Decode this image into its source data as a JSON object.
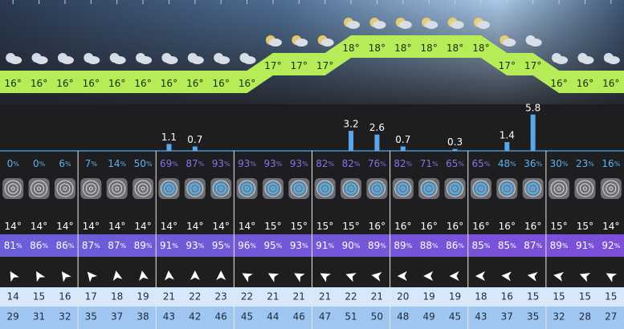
{
  "top": {
    "temps": [
      16,
      16,
      16,
      16,
      16,
      16,
      16,
      16,
      16,
      16,
      17,
      17,
      17,
      18,
      18,
      18,
      18,
      18,
      18,
      17,
      17,
      16,
      16,
      16
    ],
    "deg": "°"
  },
  "precip": {
    "values": [
      null,
      null,
      null,
      null,
      null,
      null,
      1.1,
      0.7,
      null,
      null,
      null,
      null,
      null,
      3.2,
      2.6,
      0.7,
      null,
      0.3,
      null,
      1.4,
      5.8,
      null,
      null,
      null
    ]
  },
  "cloud": {
    "values": [
      0,
      0,
      6,
      7,
      14,
      50,
      69,
      87,
      93,
      93,
      93,
      93,
      82,
      82,
      76,
      82,
      71,
      65,
      65,
      48,
      36,
      30,
      23,
      16
    ],
    "unit": "%"
  },
  "temp": {
    "values": [
      14,
      14,
      14,
      14,
      14,
      14,
      14,
      14,
      14,
      14,
      15,
      15,
      15,
      15,
      16,
      16,
      16,
      16,
      16,
      16,
      16,
      15,
      15,
      14
    ],
    "deg": "°"
  },
  "humidity": {
    "values": [
      81,
      86,
      86,
      87,
      87,
      89,
      91,
      93,
      95,
      96,
      95,
      93,
      91,
      90,
      89,
      89,
      88,
      86,
      85,
      85,
      87,
      89,
      91,
      92
    ],
    "unit": "%"
  },
  "wind": {
    "values": [
      14,
      15,
      16,
      17,
      18,
      19,
      21,
      22,
      23,
      22,
      21,
      21,
      21,
      22,
      21,
      20,
      19,
      19,
      18,
      16,
      15,
      15,
      15,
      15
    ]
  },
  "gust": {
    "values": [
      29,
      31,
      32,
      35,
      37,
      38,
      43,
      42,
      46,
      45,
      44,
      46,
      47,
      51,
      50,
      48,
      49,
      45,
      43,
      37,
      35,
      32,
      28,
      27
    ]
  }
}
